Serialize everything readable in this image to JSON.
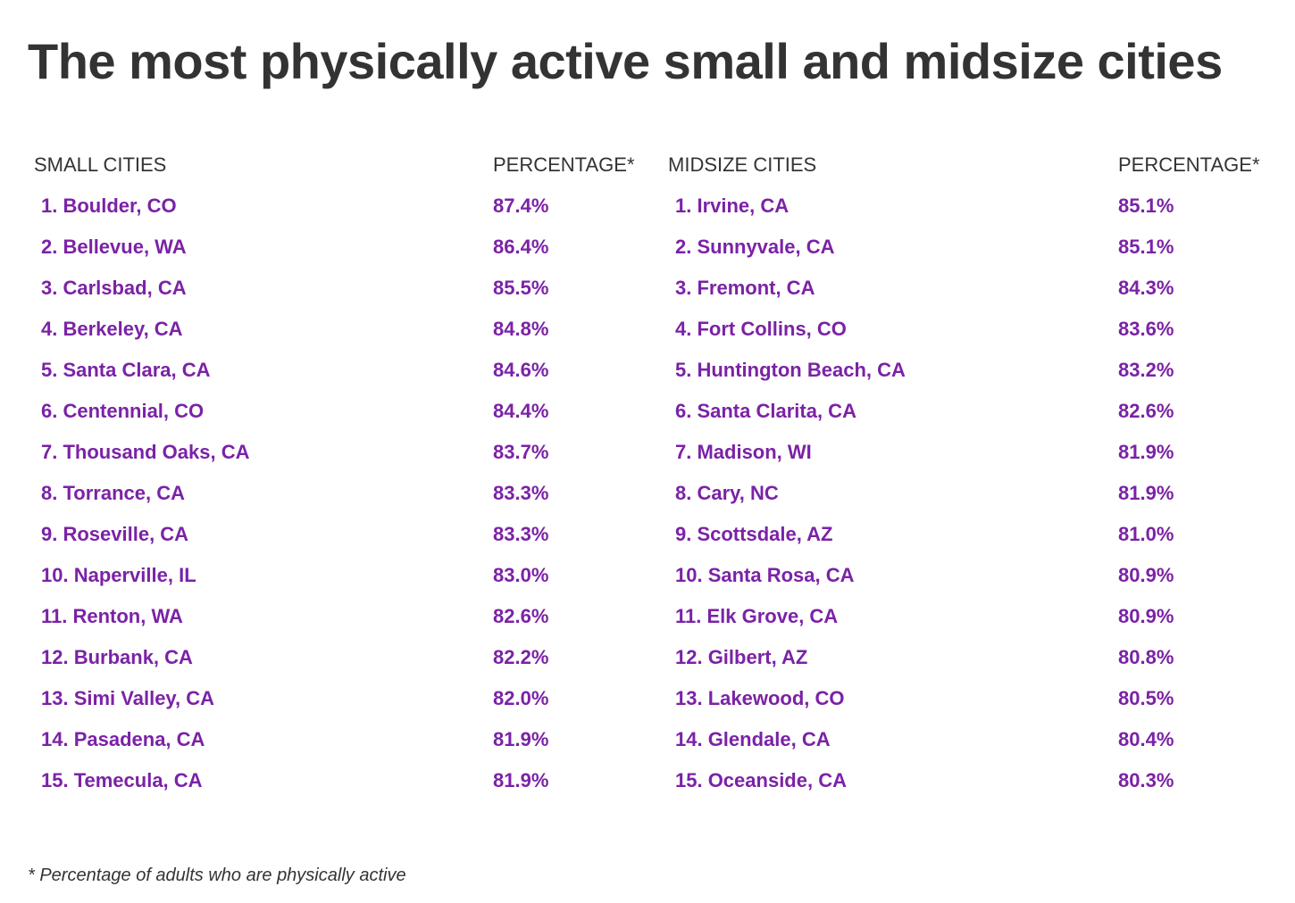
{
  "title": "The most physically active small and midsize cities",
  "small": {
    "heading": "SMALL CITIES",
    "pct_heading": "PERCENTAGE*",
    "rows": [
      {
        "city": "1. Boulder, CO",
        "pct": "87.4%"
      },
      {
        "city": "2. Bellevue, WA",
        "pct": "86.4%"
      },
      {
        "city": "3. Carlsbad, CA",
        "pct": "85.5%"
      },
      {
        "city": "4. Berkeley, CA",
        "pct": "84.8%"
      },
      {
        "city": "5. Santa Clara, CA",
        "pct": "84.6%"
      },
      {
        "city": "6. Centennial, CO",
        "pct": "84.4%"
      },
      {
        "city": "7. Thousand Oaks, CA",
        "pct": "83.7%"
      },
      {
        "city": "8. Torrance, CA",
        "pct": "83.3%"
      },
      {
        "city": "9. Roseville, CA",
        "pct": "83.3%"
      },
      {
        "city": "10. Naperville, IL",
        "pct": "83.0%"
      },
      {
        "city": "11. Renton, WA",
        "pct": "82.6%"
      },
      {
        "city": "12. Burbank, CA",
        "pct": "82.2%"
      },
      {
        "city": "13. Simi Valley, CA",
        "pct": "82.0%"
      },
      {
        "city": "14. Pasadena, CA",
        "pct": "81.9%"
      },
      {
        "city": "15. Temecula, CA",
        "pct": "81.9%"
      }
    ]
  },
  "midsize": {
    "heading": "MIDSIZE CITIES",
    "pct_heading": "PERCENTAGE*",
    "rows": [
      {
        "city": "1. Irvine, CA",
        "pct": "85.1%"
      },
      {
        "city": "2. Sunnyvale, CA",
        "pct": "85.1%"
      },
      {
        "city": "3. Fremont, CA",
        "pct": "84.3%"
      },
      {
        "city": "4. Fort Collins, CO",
        "pct": "83.6%"
      },
      {
        "city": "5. Huntington Beach, CA",
        "pct": "83.2%"
      },
      {
        "city": "6. Santa Clarita, CA",
        "pct": "82.6%"
      },
      {
        "city": "7. Madison, WI",
        "pct": "81.9%"
      },
      {
        "city": "8. Cary, NC",
        "pct": "81.9%"
      },
      {
        "city": "9. Scottsdale, AZ",
        "pct": "81.0%"
      },
      {
        "city": "10. Santa Rosa, CA",
        "pct": "80.9%"
      },
      {
        "city": "11. Elk Grove, CA",
        "pct": "80.9%"
      },
      {
        "city": "12. Gilbert, AZ",
        "pct": "80.8%"
      },
      {
        "city": "13. Lakewood, CO",
        "pct": "80.5%"
      },
      {
        "city": "14. Glendale, CA",
        "pct": "80.4%"
      },
      {
        "city": "15. Oceanside, CA",
        "pct": "80.3%"
      }
    ]
  },
  "footnote": "* Percentage of adults who are physically active",
  "colors": {
    "text": "#333333",
    "accent": "#7b22a6",
    "background": "#ffffff"
  }
}
